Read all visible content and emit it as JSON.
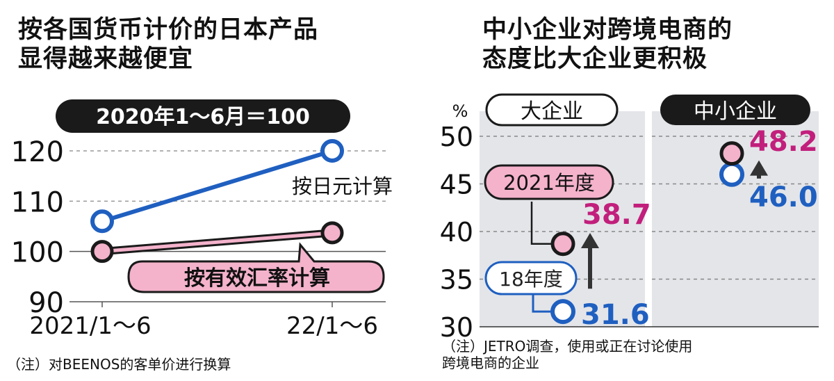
{
  "left_panel": {
    "title_line1": "按各国货币计价的日本产品",
    "title_line2": "显得越来越便宜",
    "base_label": "2020年1～6月＝100",
    "series_yen_label": "按日元计算",
    "series_eff_label": "按有效汇率计算",
    "note": "（注）对BEENOS的客单价进行换算"
  },
  "right_panel": {
    "title_line1": "中小企业对跨境电商的",
    "title_line2": "态度比大企业更积极",
    "unit": "%",
    "group_large": "大企业",
    "group_small": "中小企业",
    "label_2021": "2021年度",
    "label_2018": "18年度",
    "note_line1": "（注）JETRO调查，使用或正在讨论使用",
    "note_line2": "跨境电商的企业"
  },
  "colors": {
    "blue": "#1f5fc0",
    "pink_fill": "#f4b2cb",
    "magenta_text": "#c21f7c",
    "panel_gray": "#e3e5e9",
    "dark": "#1a1a1a"
  },
  "chart_data": [
    {
      "type": "line",
      "title": "按各国货币计价的日本产品显得越来越便宜",
      "subtitle": "2020年1～6月＝100",
      "categories": [
        "2021/1～6",
        "22/1～6"
      ],
      "series": [
        {
          "name": "按日元计算",
          "values": [
            106,
            120
          ]
        },
        {
          "name": "按有效汇率计算",
          "values": [
            100,
            103.7
          ]
        }
      ],
      "yticks": [
        "90",
        "100",
        "110",
        "120"
      ],
      "ylim": [
        90,
        120
      ],
      "xlabel": "",
      "ylabel": "",
      "grid": true,
      "annotations": [
        "（注）对BEENOS的客单价进行换算"
      ]
    },
    {
      "type": "scatter",
      "title": "中小企业对跨境电商的态度比大企业更积极",
      "categories": [
        "大企业",
        "中小企业"
      ],
      "series": [
        {
          "name": "18年度",
          "values": [
            31.6,
            46.0
          ]
        },
        {
          "name": "2021年度",
          "values": [
            38.7,
            48.2
          ]
        }
      ],
      "value_labels": {
        "大企业": {
          "18年度": "31.6",
          "2021年度": "38.7"
        },
        "中小企业": {
          "18年度": "46.0",
          "2021年度": "48.2"
        }
      },
      "yticks": [
        "30",
        "35",
        "40",
        "45",
        "50"
      ],
      "ylim": [
        30,
        50
      ],
      "ylabel": "%",
      "grid": true,
      "annotations": [
        "（注）JETRO调查，使用或正在讨论使用跨境电商的企业"
      ]
    }
  ]
}
